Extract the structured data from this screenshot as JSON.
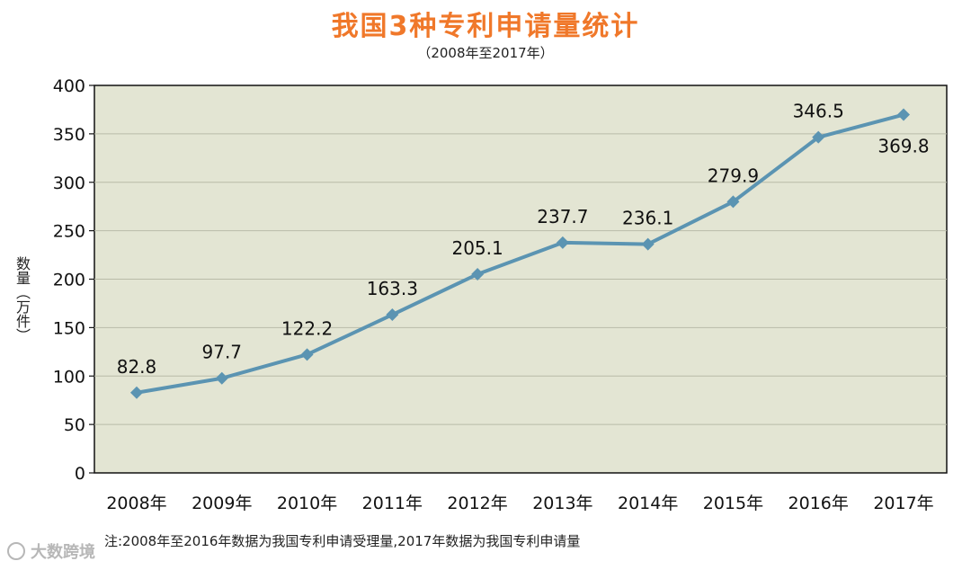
{
  "chart_data": {
    "type": "line",
    "title": "我国3种专利申请量统计",
    "subtitle": "（2008年至2017年）",
    "ylabel": "数量（万件）",
    "categories": [
      "2008年",
      "2009年",
      "2010年",
      "2011年",
      "2012年",
      "2013年",
      "2014年",
      "2015年",
      "2016年",
      "2017年"
    ],
    "series": [
      {
        "values": [
          82.8,
          97.7,
          122.2,
          163.3,
          205.1,
          237.7,
          236.1,
          279.9,
          346.5,
          369.8
        ]
      }
    ],
    "data_labels": [
      "82.8",
      "97.7",
      "122.2",
      "163.3",
      "205.1",
      "237.7",
      "236.1",
      "279.9",
      "346.5",
      "369.8"
    ],
    "ylim": [
      0,
      400
    ],
    "yticks": [
      0,
      50,
      100,
      150,
      200,
      250,
      300,
      350,
      400
    ],
    "grid": true,
    "colors": {
      "line": "#5b94b2",
      "background": "#e3e5d3",
      "grid": "#b9bba8",
      "title": "#f0782a"
    }
  },
  "note": "注:2008年至2016年数据为我国专利申请受理量,2017年数据为我国专利申请量",
  "watermark": {
    "text": "大数跨境",
    "icon": "logo-icon"
  }
}
